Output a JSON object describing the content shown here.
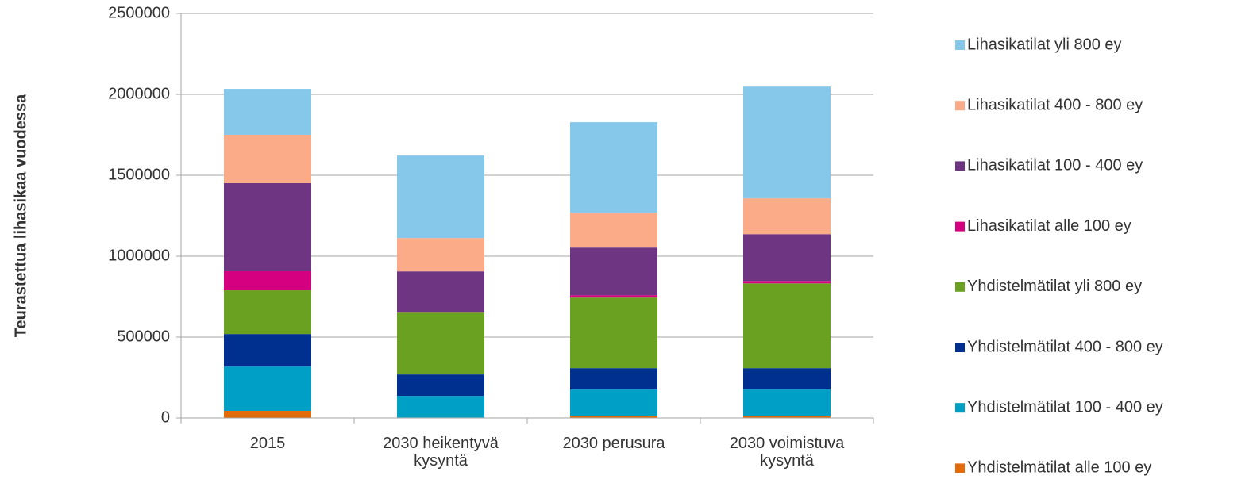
{
  "chart_data": {
    "type": "stacked_bar",
    "y_label": "Teurastettua lihasikaa vuodessa",
    "categories": [
      "2015",
      "2030 heikentyvä kysyntä",
      "2030 perusura",
      "2030 voimistuva kysyntä"
    ],
    "ylim": [
      0,
      2500000
    ],
    "yticks": [
      0,
      500000,
      1000000,
      1500000,
      2000000,
      2500000
    ],
    "grid": true,
    "legend": "right",
    "series": [
      {
        "name": "Yhdistelmätilat alle 100 ey",
        "color": "#E36C0A",
        "values": [
          44000,
          3000,
          10000,
          10000
        ]
      },
      {
        "name": "Yhdistelmätilat 100 - 400 ey",
        "color": "#00A0C6",
        "values": [
          274000,
          134000,
          166000,
          166000
        ]
      },
      {
        "name": "Yhdistelmätilat 400 - 800 ey",
        "color": "#00308F",
        "values": [
          201000,
          132000,
          132000,
          132000
        ]
      },
      {
        "name": "Yhdistelmätilat yli 800 ey",
        "color": "#6AA121",
        "values": [
          270000,
          382000,
          436000,
          524000
        ]
      },
      {
        "name": "Lihasikatilat alle 100 ey",
        "color": "#D4007F",
        "values": [
          118000,
          5000,
          15000,
          15000
        ]
      },
      {
        "name": "Lihasikatilat 100 - 400 ey",
        "color": "#6E3583",
        "values": [
          544000,
          250000,
          294000,
          289000
        ]
      },
      {
        "name": "Lihasikatilat 400 - 800 ey",
        "color": "#FBAB88",
        "values": [
          299000,
          206000,
          216000,
          221000
        ]
      },
      {
        "name": "Lihasikatilat yli 800 ey",
        "color": "#86C8EA",
        "values": [
          284000,
          510000,
          559000,
          691000
        ]
      }
    ]
  }
}
